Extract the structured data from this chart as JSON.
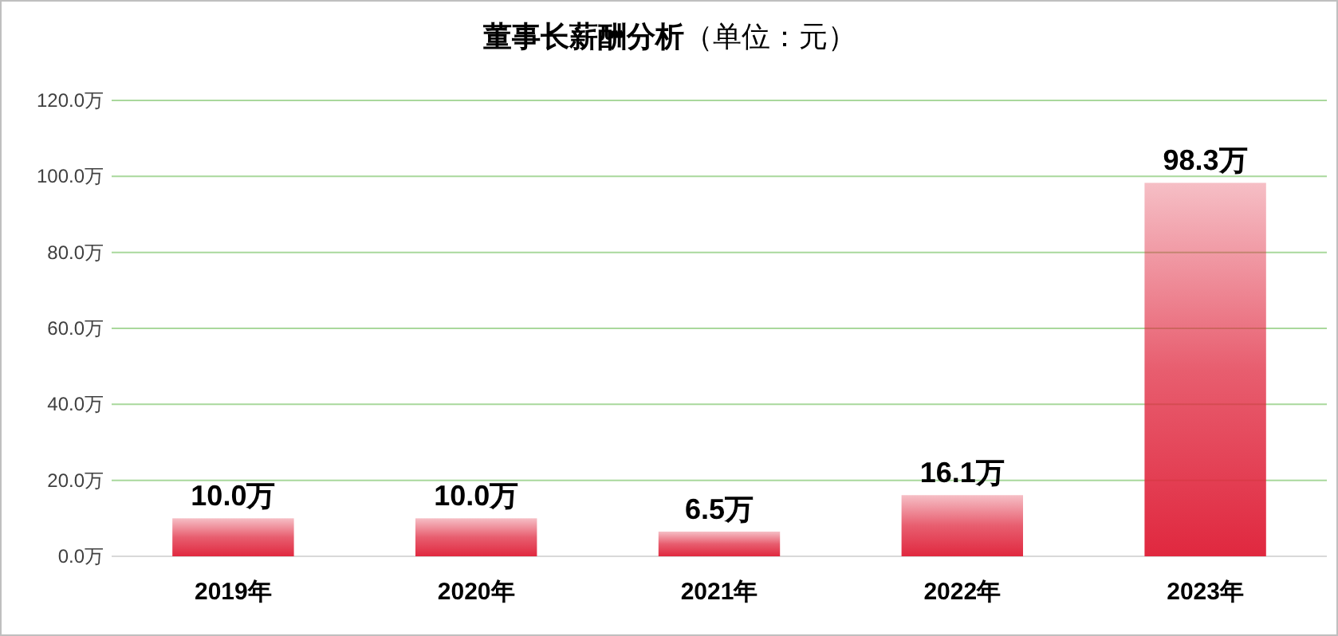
{
  "chart_data": {
    "type": "bar",
    "title": "**董事长薪酬分析**（单位：元）",
    "categories": [
      "2019年",
      "2020年",
      "2021年",
      "2022年",
      "2023年"
    ],
    "values": [
      10.0,
      10.0,
      6.5,
      16.1,
      98.3
    ],
    "value_labels": [
      "10.0万",
      "10.0万",
      "6.5万",
      "16.1万",
      "98.3万"
    ],
    "color": "#e0283f",
    "ylim": [
      0,
      120
    ],
    "yticks": [
      {
        "value": 0,
        "label": "0.0万"
      },
      {
        "value": 20,
        "label": "20.0万"
      },
      {
        "value": 40,
        "label": "40.0万"
      },
      {
        "value": 60,
        "label": "60.0万"
      },
      {
        "value": 80,
        "label": "80.0万"
      },
      {
        "value": 100,
        "label": "100.0万"
      },
      {
        "value": 120,
        "label": "120.0万"
      }
    ],
    "grid": "y"
  }
}
